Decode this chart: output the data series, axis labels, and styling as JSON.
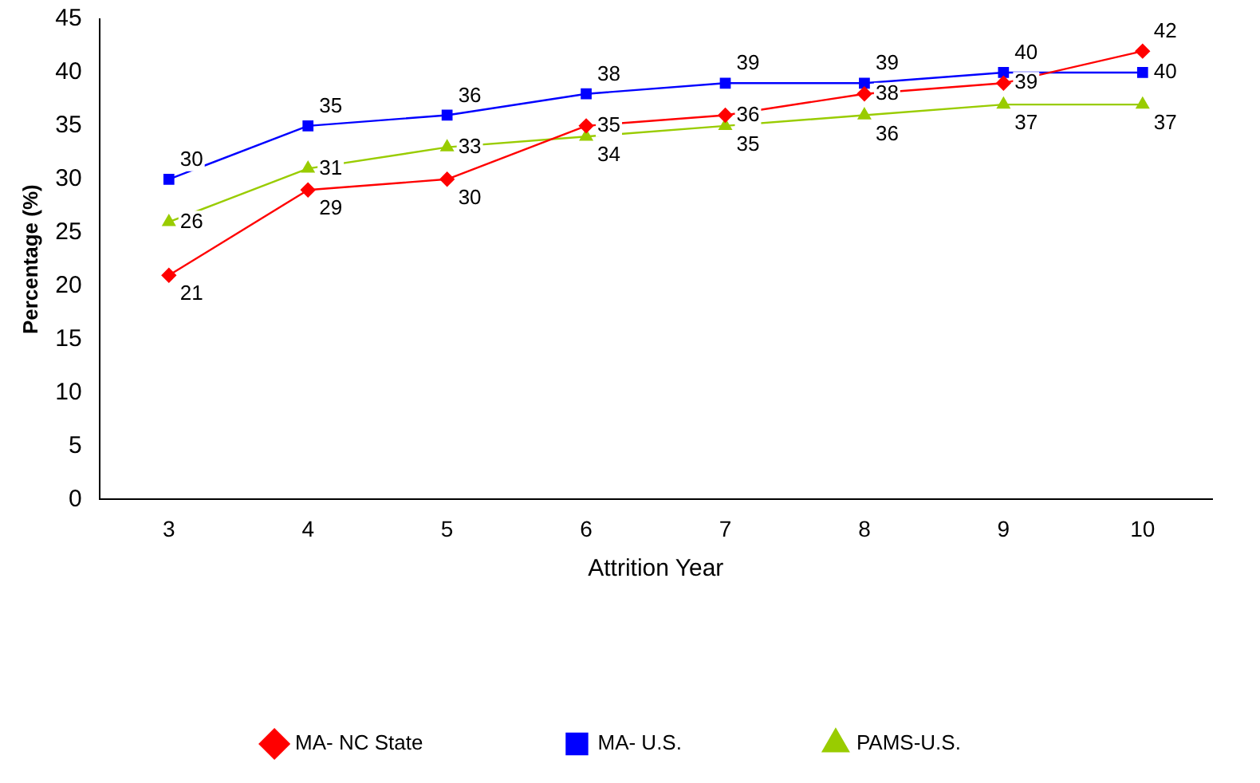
{
  "chart_data": {
    "type": "line",
    "xlabel": "Attrition Year",
    "ylabel": "Percentage (%)",
    "categories": [
      "3",
      "4",
      "5",
      "6",
      "7",
      "8",
      "9",
      "10"
    ],
    "series": [
      {
        "name": "MA- NC State",
        "color": "#ff0000",
        "marker": "diamond",
        "values": [
          21,
          29,
          30,
          35,
          36,
          38,
          39,
          42
        ]
      },
      {
        "name": "MA- U.S.",
        "color": "#0000ff",
        "marker": "square",
        "values": [
          30,
          35,
          36,
          38,
          39,
          39,
          40,
          40
        ]
      },
      {
        "name": "PAMS-U.S.",
        "color": "#99cc00",
        "marker": "triangle",
        "values": [
          26,
          31,
          33,
          34,
          35,
          36,
          37,
          37
        ]
      }
    ],
    "ylim": [
      0,
      45
    ],
    "yticks": [
      0,
      5,
      10,
      15,
      20,
      25,
      30,
      35,
      40,
      45
    ],
    "grid": false,
    "legend": "bottom",
    "data_labels": true
  }
}
